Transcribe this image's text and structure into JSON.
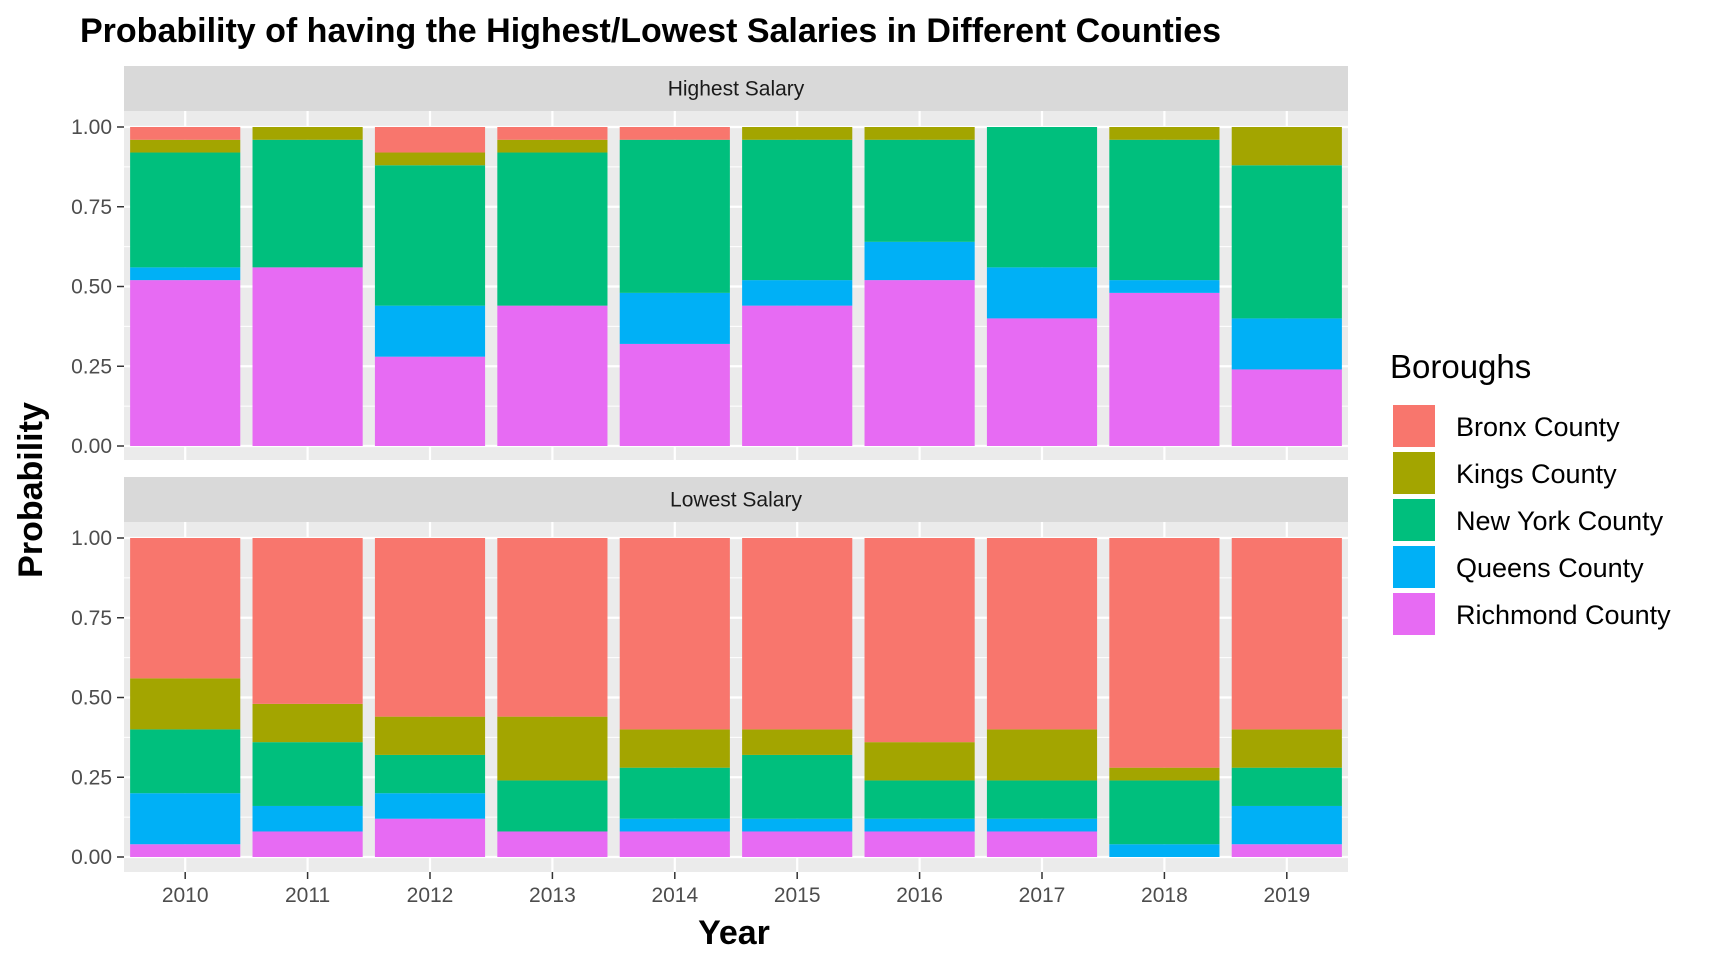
{
  "chart_data": {
    "type": "bar",
    "stacked": true,
    "title": "Probability of having the Highest/Lowest Salaries in Different Counties",
    "xlabel": "Year",
    "ylabel": "Probability",
    "ylim": [
      0,
      1
    ],
    "yticks": [
      "0.00",
      "0.25",
      "0.50",
      "0.75",
      "1.00"
    ],
    "categories": [
      "2010",
      "2011",
      "2012",
      "2013",
      "2014",
      "2015",
      "2016",
      "2017",
      "2018",
      "2019"
    ],
    "legend": {
      "title": "Boroughs",
      "placement": "right",
      "entries": [
        {
          "name": "Bronx County",
          "color": "#F8766D"
        },
        {
          "name": "Kings County",
          "color": "#A3A500"
        },
        {
          "name": "New York County",
          "color": "#00BF7D"
        },
        {
          "name": "Queens County",
          "color": "#00B0F6"
        },
        {
          "name": "Richmond County",
          "color": "#E76BF3"
        }
      ]
    },
    "panels": [
      {
        "label": "Highest Salary",
        "series": [
          {
            "name": "Richmond County",
            "values": [
              0.52,
              0.56,
              0.28,
              0.44,
              0.32,
              0.44,
              0.52,
              0.4,
              0.48,
              0.24
            ]
          },
          {
            "name": "Queens County",
            "values": [
              0.04,
              0.0,
              0.16,
              0.0,
              0.16,
              0.08,
              0.12,
              0.16,
              0.04,
              0.16
            ]
          },
          {
            "name": "New York County",
            "values": [
              0.36,
              0.4,
              0.44,
              0.48,
              0.48,
              0.44,
              0.32,
              0.44,
              0.44,
              0.48
            ]
          },
          {
            "name": "Kings County",
            "values": [
              0.04,
              0.04,
              0.04,
              0.04,
              0.0,
              0.04,
              0.04,
              0.0,
              0.04,
              0.12
            ]
          },
          {
            "name": "Bronx County",
            "values": [
              0.04,
              0.0,
              0.08,
              0.04,
              0.04,
              0.0,
              0.0,
              0.0,
              0.0,
              0.0
            ]
          }
        ]
      },
      {
        "label": "Lowest Salary",
        "series": [
          {
            "name": "Richmond County",
            "values": [
              0.04,
              0.08,
              0.12,
              0.08,
              0.08,
              0.08,
              0.08,
              0.08,
              0.0,
              0.04
            ]
          },
          {
            "name": "Queens County",
            "values": [
              0.16,
              0.08,
              0.08,
              0.0,
              0.04,
              0.04,
              0.04,
              0.04,
              0.04,
              0.12
            ]
          },
          {
            "name": "New York County",
            "values": [
              0.2,
              0.2,
              0.12,
              0.16,
              0.16,
              0.2,
              0.12,
              0.12,
              0.2,
              0.12
            ]
          },
          {
            "name": "Kings County",
            "values": [
              0.16,
              0.12,
              0.12,
              0.2,
              0.12,
              0.08,
              0.12,
              0.16,
              0.04,
              0.12
            ]
          },
          {
            "name": "Bronx County",
            "values": [
              0.44,
              0.52,
              0.56,
              0.56,
              0.6,
              0.6,
              0.64,
              0.6,
              0.72,
              0.6
            ]
          }
        ]
      }
    ]
  }
}
